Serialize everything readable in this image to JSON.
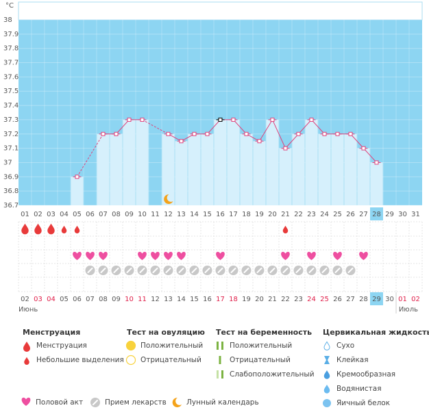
{
  "chart_data": {
    "type": "line",
    "unit": "°C",
    "categories": [
      "01",
      "02",
      "03",
      "04",
      "05",
      "06",
      "07",
      "08",
      "09",
      "10",
      "11",
      "12",
      "13",
      "14",
      "15",
      "16",
      "17",
      "18",
      "19",
      "20",
      "21",
      "22",
      "23",
      "24",
      "25",
      "26",
      "27",
      "28",
      "29",
      "30",
      "31"
    ],
    "values": [
      null,
      null,
      null,
      null,
      36.9,
      null,
      37.2,
      37.2,
      37.3,
      37.3,
      null,
      37.2,
      37.15,
      37.2,
      37.2,
      37.3,
      37.3,
      37.2,
      37.15,
      37.3,
      37.1,
      37.2,
      37.3,
      37.2,
      37.2,
      37.2,
      37.1,
      37.0,
      null,
      null,
      null
    ],
    "color": "#e0407a",
    "bar_color": "#d6f0fc",
    "background": "#8dd5f2",
    "ylim": [
      36.7,
      38
    ],
    "yticks": [
      36.7,
      36.8,
      36.9,
      37,
      37.1,
      37.2,
      37.3,
      37.4,
      37.5,
      37.6,
      37.7,
      37.8,
      37.9,
      38
    ],
    "grid": true,
    "selected_index": 15,
    "current_index": 27,
    "lunar_days": [
      11
    ],
    "dates": [
      "02",
      "03",
      "04",
      "05",
      "06",
      "07",
      "08",
      "09",
      "10",
      "11",
      "12",
      "13",
      "14",
      "15",
      "16",
      "17",
      "18",
      "19",
      "20",
      "21",
      "22",
      "23",
      "24",
      "25",
      "26",
      "27",
      "28",
      "29",
      "30",
      "01",
      "02"
    ],
    "red_dates": [
      1,
      2,
      8,
      9,
      15,
      16,
      22,
      23,
      29,
      30
    ],
    "months": [
      "Июнь",
      "Июль"
    ]
  },
  "legend": {
    "groups": [
      {
        "title": "Менструация",
        "items": [
          {
            "label": "Менструация",
            "days": [
              0,
              1,
              2
            ]
          },
          {
            "label": "Небольшие выделения",
            "days": [
              3,
              4,
              20
            ]
          }
        ]
      },
      {
        "title": "Тест на овуляцию",
        "items": [
          {
            "label": "Положительный"
          },
          {
            "label": "Отрицательный"
          }
        ]
      },
      {
        "title": "Тест на беременность",
        "items": [
          {
            "label": "Положительный"
          },
          {
            "label": "Отрицательный"
          },
          {
            "label": "Слабоположительный"
          }
        ]
      },
      {
        "title": "Цервикальная жидкость",
        "items": [
          {
            "label": "Сухо"
          },
          {
            "label": "Клейкая"
          },
          {
            "label": "Кремообразная"
          },
          {
            "label": "Водянистая"
          },
          {
            "label": "Яичный белок"
          }
        ]
      }
    ],
    "extras": [
      {
        "label": "Половой акт",
        "days": [
          4,
          5,
          6,
          9,
          10,
          11,
          12,
          15,
          20,
          22,
          24,
          26
        ]
      },
      {
        "label": "Прием лекарств",
        "days": [
          5,
          6,
          7,
          8,
          9,
          10,
          11,
          12,
          13,
          14,
          15,
          16,
          17,
          18,
          19,
          20,
          21,
          22,
          23,
          24,
          25
        ]
      },
      {
        "label": "Лунный календарь"
      }
    ]
  }
}
